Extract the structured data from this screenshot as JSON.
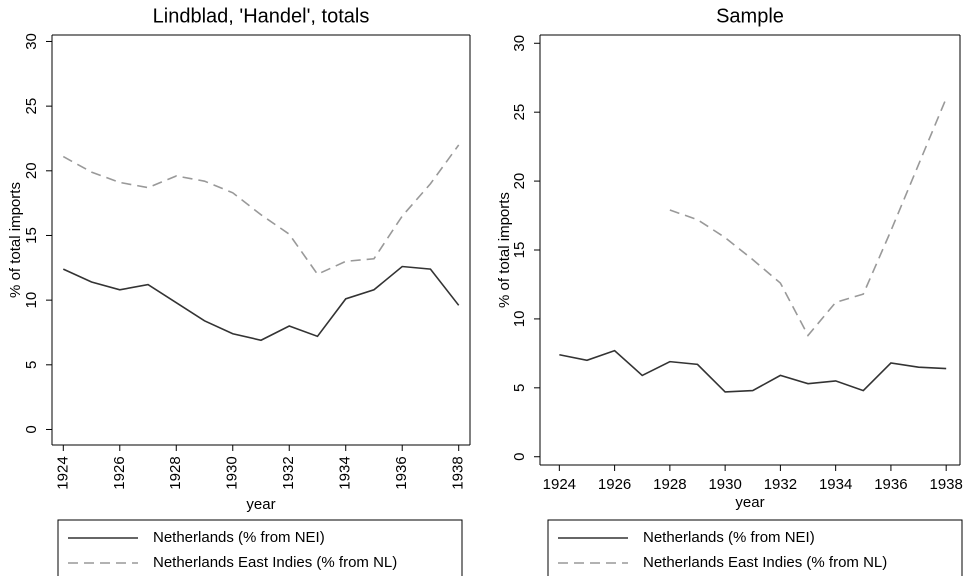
{
  "chart_data": [
    {
      "type": "line",
      "title": "Lindblad, 'Handel', totals",
      "x_label": "year",
      "y_label": "% of total imports",
      "x": [
        1924,
        1925,
        1926,
        1927,
        1928,
        1929,
        1930,
        1931,
        1932,
        1933,
        1934,
        1935,
        1936,
        1937,
        1938
      ],
      "xlim": [
        1923.6,
        1938.4
      ],
      "xticks": [
        1924,
        1926,
        1928,
        1930,
        1932,
        1934,
        1936,
        1938
      ],
      "ylim": [
        -1.2,
        30.5
      ],
      "yticks": [
        0,
        5,
        10,
        15,
        20,
        25,
        30
      ],
      "legend": "bottom",
      "series": [
        {
          "name": "Netherlands (% from NEI)",
          "color": "#333333",
          "dash": "solid",
          "values": [
            12.4,
            11.4,
            10.8,
            11.2,
            9.8,
            8.4,
            7.4,
            6.9,
            8.0,
            7.2,
            10.1,
            10.8,
            12.6,
            12.4,
            9.6
          ]
        },
        {
          "name": "Netherlands East Indies (% from NL)",
          "color": "#999999",
          "dash": "dashed",
          "values": [
            21.1,
            19.9,
            19.1,
            18.7,
            19.6,
            19.2,
            18.3,
            16.6,
            15.1,
            12.0,
            13.0,
            13.2,
            16.5,
            19.0,
            22.0
          ]
        }
      ]
    },
    {
      "type": "line",
      "title": "Sample",
      "x_label": "year",
      "y_label": "% of total imports",
      "x": [
        1924,
        1925,
        1926,
        1927,
        1928,
        1929,
        1930,
        1931,
        1932,
        1933,
        1934,
        1935,
        1936,
        1937,
        1938
      ],
      "xlim": [
        1923.3,
        1938.5
      ],
      "xticks": [
        1924,
        1926,
        1928,
        1930,
        1932,
        1934,
        1936,
        1938
      ],
      "ylim": [
        -0.6,
        30.6
      ],
      "yticks": [
        0,
        5,
        10,
        15,
        20,
        25,
        30
      ],
      "legend": "bottom",
      "series": [
        {
          "name": "Netherlands (% from NEI)",
          "color": "#333333",
          "dash": "solid",
          "values": [
            7.4,
            7.0,
            7.7,
            5.9,
            6.9,
            6.7,
            4.7,
            4.8,
            5.9,
            5.3,
            5.5,
            4.8,
            6.8,
            6.5,
            6.4
          ]
        },
        {
          "name": "Netherlands East Indies (% from NL)",
          "color": "#999999",
          "dash": "dashed",
          "values": [
            null,
            null,
            null,
            null,
            17.9,
            17.2,
            15.9,
            14.3,
            12.6,
            8.8,
            11.2,
            11.8,
            16.4,
            21.2,
            26.0
          ]
        }
      ]
    }
  ]
}
